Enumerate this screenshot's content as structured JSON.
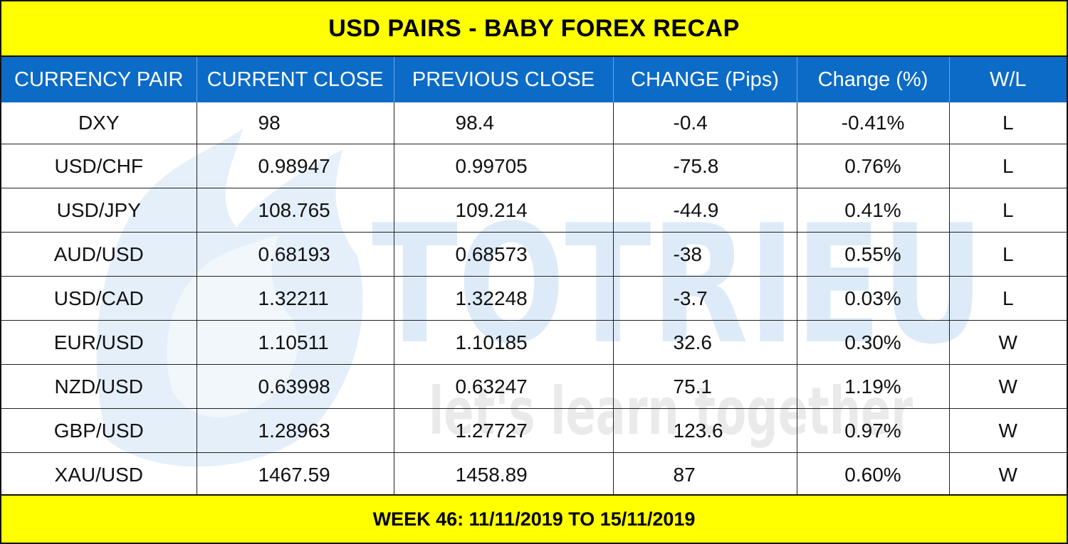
{
  "title": "USD PAIRS - BABY FOREX RECAP",
  "columns": [
    "CURRENCY PAIR",
    "CURRENT CLOSE",
    "PREVIOUS CLOSE",
    "CHANGE (Pips)",
    "Change (%)",
    "W/L"
  ],
  "rows": [
    {
      "pair": "DXY",
      "current": "98",
      "previous": "98.4",
      "pips": "-0.4",
      "pct": "-0.41%",
      "wl": "L"
    },
    {
      "pair": "USD/CHF",
      "current": "0.98947",
      "previous": "0.99705",
      "pips": "-75.8",
      "pct": "0.76%",
      "wl": "L"
    },
    {
      "pair": "USD/JPY",
      "current": "108.765",
      "previous": "109.214",
      "pips": "-44.9",
      "pct": "0.41%",
      "wl": "L"
    },
    {
      "pair": "AUD/USD",
      "current": "0.68193",
      "previous": "0.68573",
      "pips": "-38",
      "pct": "0.55%",
      "wl": "L"
    },
    {
      "pair": "USD/CAD",
      "current": "1.32211",
      "previous": "1.32248",
      "pips": "-3.7",
      "pct": "0.03%",
      "wl": "L"
    },
    {
      "pair": "EUR/USD",
      "current": "1.10511",
      "previous": "1.10185",
      "pips": "32.6",
      "pct": "0.30%",
      "wl": "W"
    },
    {
      "pair": "NZD/USD",
      "current": "0.63998",
      "previous": "0.63247",
      "pips": "75.1",
      "pct": "1.19%",
      "wl": "W"
    },
    {
      "pair": "GBP/USD",
      "current": "1.28963",
      "previous": "1.27727",
      "pips": "123.6",
      "pct": "0.97%",
      "wl": "W"
    },
    {
      "pair": "XAU/USD",
      "current": "1467.59",
      "previous": "1458.89",
      "pips": "87",
      "pct": "0.60%",
      "wl": "W"
    }
  ],
  "footer": "WEEK 46: 11/11/2019 TO 15/11/2019",
  "watermark": {
    "brand": "TOTRIEU",
    "tagline": "let's learn together"
  },
  "colors": {
    "banner": "#ffff00",
    "header": "#0b6bc7",
    "header_text": "#ffffff",
    "watermark_blue": "#cfe3f7",
    "watermark_gray": "#e6e6e6"
  }
}
